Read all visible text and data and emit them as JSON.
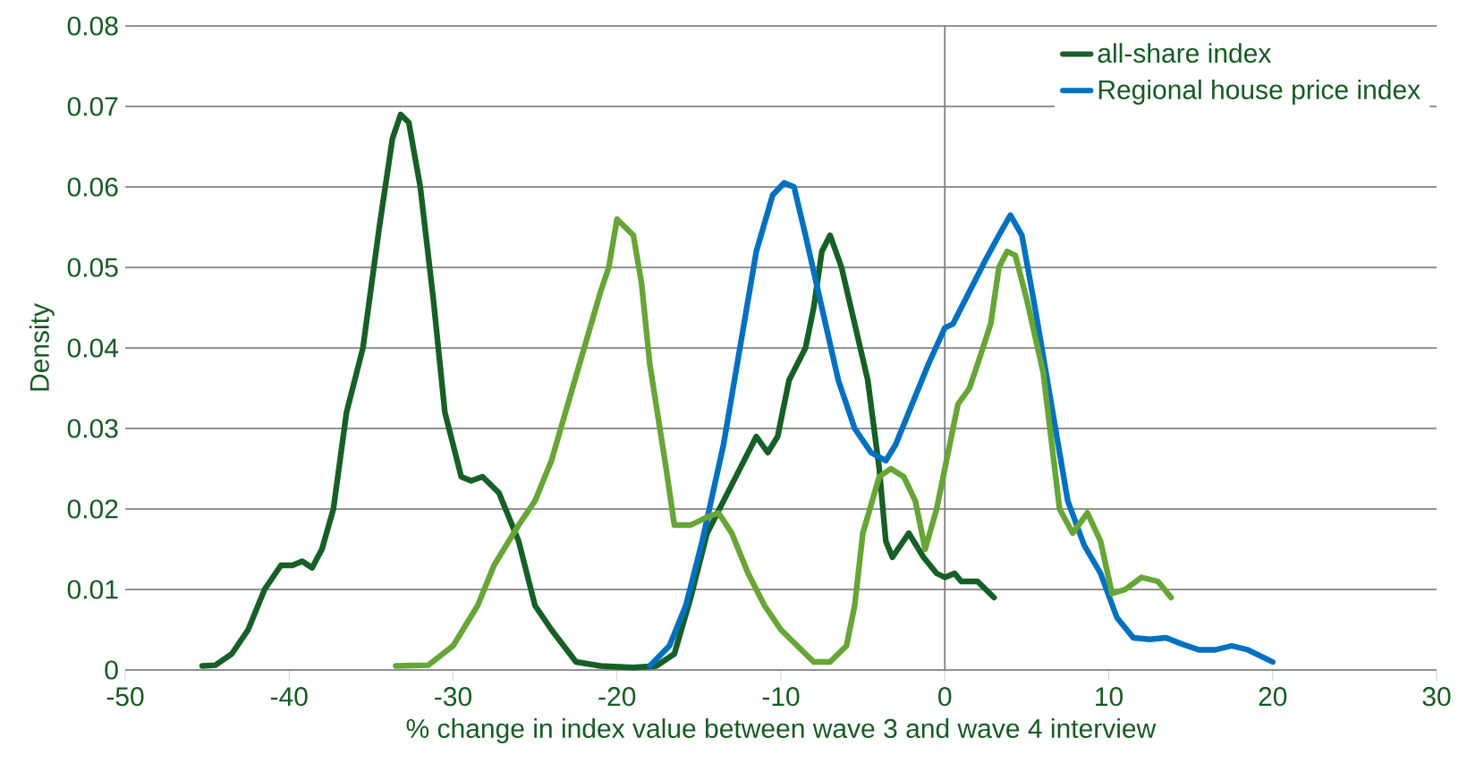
{
  "chart_data": {
    "type": "line",
    "xlabel": "% change in index value between wave 3 and wave 4 interview",
    "ylabel": "Density",
    "xlim": [
      -50,
      30
    ],
    "xticks": [
      -50,
      -40,
      -30,
      -20,
      -10,
      0,
      10,
      20,
      30
    ],
    "ylim": [
      0,
      0.08
    ],
    "yticks": [
      0,
      0.01,
      0.02,
      0.03,
      0.04,
      0.05,
      0.06,
      0.07,
      0.08
    ],
    "grid": "y",
    "legend": "top right",
    "marker": "none",
    "line_style": "solid",
    "ref_lines": [
      {
        "axis": "x",
        "value": 0,
        "color": "#7f7f7f"
      }
    ],
    "series": [
      {
        "name": "all-share index",
        "color": "#165f26",
        "x": [
          -45.3,
          -44.5,
          -43.5,
          -42.5,
          -41.5,
          -40.5,
          -39.8,
          -39.2,
          -38.6,
          -38,
          -37.3,
          -36.5,
          -35.5,
          -34.5,
          -33.7,
          -33.2,
          -32.7,
          -32,
          -31.2,
          -30.5,
          -29.5,
          -28.9,
          -28.2,
          -27.2,
          -26,
          -25,
          -24,
          -22.5,
          -21,
          -19,
          -17.6,
          -16.5,
          -15.5,
          -14.5,
          -13.5,
          -12.5,
          -11.5,
          -10.8,
          -10.2,
          -9.5,
          -8.5,
          -8,
          -7.5,
          -7,
          -6.3,
          -5.5,
          -4.7,
          -4,
          -3.6,
          -3.2,
          -2.2,
          -1.3,
          -0.5,
          0,
          0.6,
          1,
          2,
          3
        ],
        "values": [
          0.0005,
          0.0006,
          0.002,
          0.005,
          0.01,
          0.013,
          0.013,
          0.0135,
          0.0127,
          0.015,
          0.02,
          0.032,
          0.04,
          0.055,
          0.066,
          0.069,
          0.068,
          0.06,
          0.046,
          0.032,
          0.024,
          0.0235,
          0.024,
          0.022,
          0.016,
          0.008,
          0.005,
          0.001,
          0.0005,
          0.0003,
          0.0005,
          0.002,
          0.009,
          0.017,
          0.021,
          0.025,
          0.029,
          0.027,
          0.029,
          0.036,
          0.04,
          0.045,
          0.052,
          0.054,
          0.05,
          0.043,
          0.036,
          0.025,
          0.016,
          0.014,
          0.017,
          0.014,
          0.012,
          0.0115,
          0.012,
          0.011,
          0.011,
          0.009
        ]
      },
      {
        "name": "Regional house price index",
        "color": "#0070c0",
        "x": [
          -18,
          -16.8,
          -15.8,
          -14.8,
          -13.5,
          -12.5,
          -11.5,
          -10.5,
          -9.8,
          -9.2,
          -8.5,
          -7.5,
          -6.5,
          -5.5,
          -4.5,
          -3.6,
          -3,
          -2,
          -1,
          0,
          0.5,
          1.5,
          2.5,
          3.3,
          4,
          4.7,
          5.5,
          6.5,
          7.5,
          8.5,
          9.5,
          10.5,
          11.5,
          12.5,
          13.5,
          14.5,
          15.5,
          16.5,
          17.5,
          18.5,
          20
        ],
        "values": [
          0.0005,
          0.003,
          0.008,
          0.016,
          0.028,
          0.04,
          0.052,
          0.059,
          0.0605,
          0.06,
          0.054,
          0.045,
          0.036,
          0.03,
          0.027,
          0.026,
          0.028,
          0.033,
          0.038,
          0.0425,
          0.043,
          0.047,
          0.051,
          0.054,
          0.0565,
          0.054,
          0.045,
          0.033,
          0.021,
          0.0155,
          0.012,
          0.0065,
          0.004,
          0.0038,
          0.004,
          0.0032,
          0.0025,
          0.0025,
          0.003,
          0.0025,
          0.001
        ]
      },
      {
        "color": "#66a536",
        "x": [
          -33.5,
          -31.5,
          -30,
          -28.5,
          -27.5,
          -26,
          -25,
          -24,
          -23,
          -22,
          -21,
          -20.5,
          -20,
          -19.5,
          -19,
          -18.5,
          -18,
          -17,
          -16.5,
          -15.5,
          -14.5,
          -13.8,
          -13,
          -12,
          -11,
          -10,
          -9,
          -8,
          -7,
          -6,
          -5.5,
          -5,
          -4,
          -3.3,
          -2.5,
          -1.8,
          -1.2,
          -0.5,
          0,
          0.8,
          1.5,
          2,
          2.8,
          3.3,
          3.8,
          4.3,
          5,
          6,
          7,
          7.8,
          8.7,
          9.5,
          10.2,
          11,
          12,
          13,
          13.8
        ],
        "values": [
          0.0005,
          0.0006,
          0.003,
          0.008,
          0.013,
          0.018,
          0.021,
          0.026,
          0.033,
          0.04,
          0.047,
          0.05,
          0.056,
          0.055,
          0.054,
          0.048,
          0.038,
          0.025,
          0.018,
          0.018,
          0.019,
          0.0195,
          0.017,
          0.012,
          0.008,
          0.005,
          0.003,
          0.001,
          0.001,
          0.003,
          0.008,
          0.017,
          0.024,
          0.025,
          0.024,
          0.021,
          0.015,
          0.02,
          0.025,
          0.033,
          0.035,
          0.038,
          0.043,
          0.05,
          0.052,
          0.0515,
          0.046,
          0.037,
          0.02,
          0.017,
          0.0195,
          0.016,
          0.0095,
          0.01,
          0.0115,
          0.011,
          0.009
        ]
      }
    ]
  }
}
